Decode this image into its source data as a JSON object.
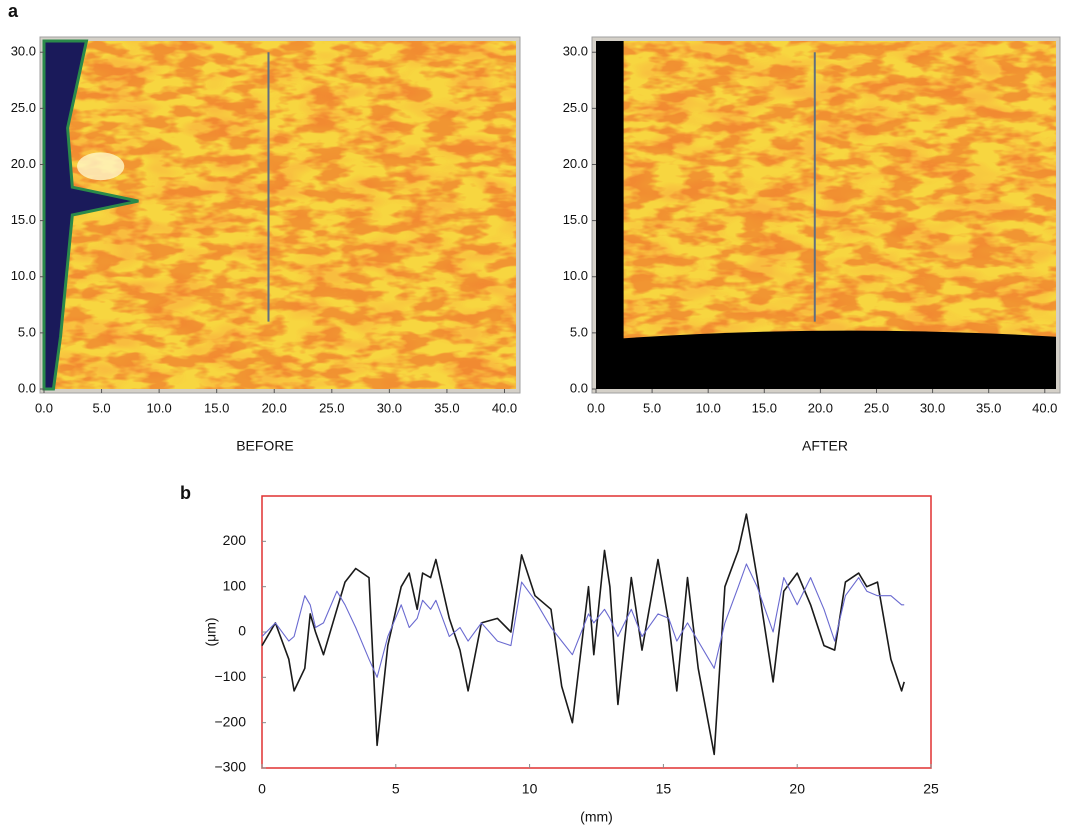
{
  "chart_data": [
    {
      "type": "heatmap",
      "annotation": "a",
      "caption": "BEFORE",
      "xlim": [
        0,
        41
      ],
      "ylim": [
        0,
        31
      ],
      "xticks": [
        {
          "value": 0,
          "label": "0.0"
        },
        {
          "value": 5,
          "label": "5.0"
        },
        {
          "value": 10,
          "label": "10.0"
        },
        {
          "value": 15,
          "label": "15.0"
        },
        {
          "value": 20,
          "label": "20.0"
        },
        {
          "value": 25,
          "label": "25.0"
        },
        {
          "value": 30,
          "label": "30.0"
        },
        {
          "value": 35,
          "label": "35.0"
        },
        {
          "value": 40,
          "label": "40.0"
        }
      ],
      "yticks": [
        {
          "value": 0,
          "label": "0.0"
        },
        {
          "value": 5,
          "label": "5.0"
        },
        {
          "value": 10,
          "label": "10.0"
        },
        {
          "value": 15,
          "label": "15.0"
        },
        {
          "value": 20,
          "label": "20.0"
        },
        {
          "value": 25,
          "label": "25.0"
        },
        {
          "value": 30,
          "label": "30.0"
        }
      ],
      "profile_x": 19.5,
      "profile_y": [
        6,
        30
      ]
    },
    {
      "type": "heatmap",
      "caption": "AFTER",
      "xlim": [
        0,
        41
      ],
      "ylim": [
        0,
        31
      ],
      "xticks": [
        {
          "value": 0,
          "label": "0.0"
        },
        {
          "value": 5,
          "label": "5.0"
        },
        {
          "value": 10,
          "label": "10.0"
        },
        {
          "value": 15,
          "label": "15.0"
        },
        {
          "value": 20,
          "label": "20.0"
        },
        {
          "value": 25,
          "label": "25.0"
        },
        {
          "value": 30,
          "label": "30.0"
        },
        {
          "value": 35,
          "label": "35.0"
        },
        {
          "value": 40,
          "label": "40.0"
        }
      ],
      "yticks": [
        {
          "value": 0,
          "label": "0.0"
        },
        {
          "value": 5,
          "label": "5.0"
        },
        {
          "value": 10,
          "label": "10.0"
        },
        {
          "value": 15,
          "label": "15.0"
        },
        {
          "value": 20,
          "label": "20.0"
        },
        {
          "value": 25,
          "label": "25.0"
        },
        {
          "value": 30,
          "label": "30.0"
        }
      ],
      "profile_x": 19.5,
      "profile_y": [
        6,
        30
      ]
    },
    {
      "type": "line",
      "annotation": "b",
      "xlabel": "(mm)",
      "ylabel": "(μm)",
      "xlim": [
        0,
        25
      ],
      "ylim": [
        -300,
        300
      ],
      "xticks": [
        0,
        5,
        10,
        15,
        20,
        25
      ],
      "yticks": [
        {
          "value": -300,
          "label": "−300"
        },
        {
          "value": -200,
          "label": "−200"
        },
        {
          "value": -100,
          "label": "−100"
        },
        0,
        100,
        200
      ],
      "x": [
        0,
        0.5,
        1.0,
        1.2,
        1.6,
        1.8,
        2.0,
        2.3,
        2.8,
        3.1,
        3.5,
        4.0,
        4.3,
        4.7,
        5.2,
        5.5,
        5.8,
        6.0,
        6.3,
        6.5,
        7.0,
        7.4,
        7.7,
        8.2,
        8.8,
        9.3,
        9.7,
        10.2,
        10.8,
        11.2,
        11.6,
        12.2,
        12.4,
        12.8,
        13.0,
        13.3,
        13.8,
        14.2,
        14.8,
        15.2,
        15.5,
        15.9,
        16.3,
        16.9,
        17.3,
        17.8,
        18.1,
        18.5,
        19.1,
        19.5,
        20.0,
        20.5,
        21.0,
        21.4,
        21.8,
        22.3,
        22.6,
        23.0,
        23.5,
        23.9,
        24.0
      ],
      "series": [
        {
          "color": "#1a1a1a",
          "values": [
            -30,
            20,
            -60,
            -130,
            -80,
            40,
            0,
            -50,
            50,
            110,
            140,
            120,
            -250,
            -30,
            100,
            130,
            50,
            130,
            120,
            160,
            30,
            -40,
            -130,
            20,
            30,
            0,
            170,
            80,
            50,
            -120,
            -200,
            100,
            -50,
            180,
            100,
            -160,
            120,
            -40,
            160,
            20,
            -130,
            120,
            -80,
            -270,
            100,
            180,
            260,
            120,
            -110,
            90,
            130,
            60,
            -30,
            -40,
            110,
            130,
            100,
            110,
            -60,
            -130,
            -110
          ]
        },
        {
          "color": "#6a6ad0",
          "values": [
            -10,
            20,
            -20,
            -10,
            80,
            60,
            10,
            20,
            90,
            60,
            10,
            -60,
            -100,
            -10,
            60,
            10,
            30,
            70,
            50,
            70,
            -10,
            10,
            -20,
            20,
            -20,
            -30,
            110,
            70,
            10,
            -20,
            -50,
            40,
            20,
            50,
            30,
            -10,
            50,
            -10,
            40,
            30,
            -20,
            20,
            -20,
            -80,
            20,
            100,
            150,
            100,
            0,
            120,
            60,
            120,
            50,
            -20,
            80,
            120,
            90,
            80,
            80,
            60,
            60
          ]
        }
      ]
    }
  ]
}
